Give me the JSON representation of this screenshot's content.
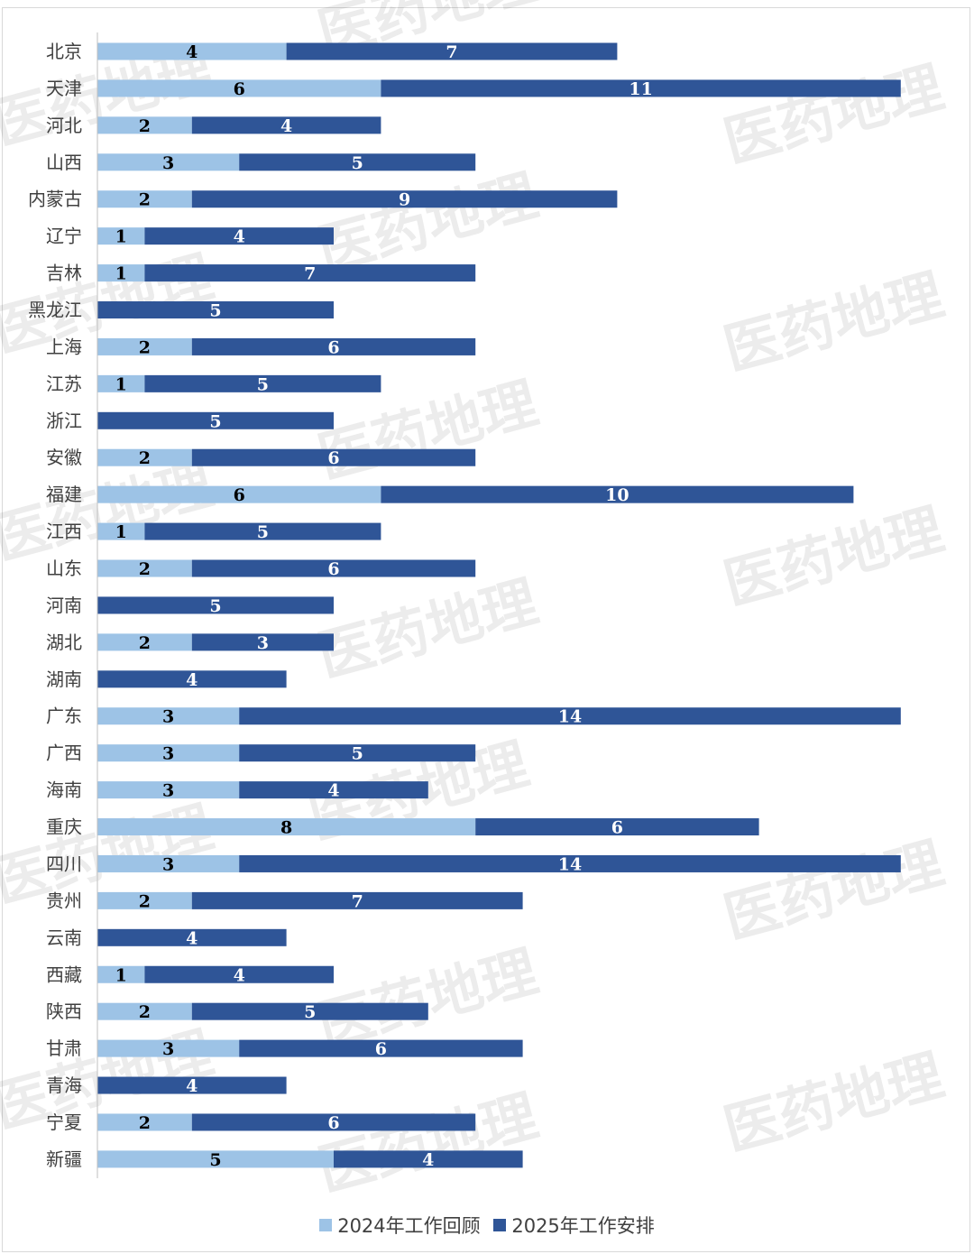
{
  "chart_data": {
    "type": "bar",
    "orientation": "horizontal",
    "stacked": true,
    "categories": [
      "北京",
      "天津",
      "河北",
      "山西",
      "内蒙古",
      "辽宁",
      "吉林",
      "黑龙江",
      "上海",
      "江苏",
      "浙江",
      "安徽",
      "福建",
      "江西",
      "山东",
      "河南",
      "湖北",
      "湖南",
      "广东",
      "广西",
      "海南",
      "重庆",
      "四川",
      "贵州",
      "云南",
      "西藏",
      "陕西",
      "甘肃",
      "青海",
      "宁夏",
      "新疆"
    ],
    "series": [
      {
        "name": "2024年工作回顾",
        "color": "#9dc3e6",
        "values": [
          4,
          6,
          2,
          3,
          2,
          1,
          1,
          0,
          2,
          1,
          0,
          2,
          6,
          1,
          2,
          0,
          2,
          0,
          3,
          3,
          3,
          8,
          3,
          2,
          0,
          1,
          2,
          3,
          0,
          2,
          5
        ]
      },
      {
        "name": "2025年工作安排",
        "color": "#2f5597",
        "values": [
          7,
          11,
          4,
          5,
          9,
          4,
          7,
          5,
          6,
          5,
          5,
          6,
          10,
          5,
          6,
          5,
          3,
          4,
          14,
          5,
          4,
          6,
          14,
          7,
          4,
          4,
          5,
          6,
          4,
          6,
          4
        ]
      }
    ],
    "xlim": [
      0,
      17
    ],
    "grid": false,
    "data_labels": true,
    "legend_position": "bottom",
    "title": "",
    "xlabel": "",
    "ylabel": ""
  },
  "watermark": "医药地理"
}
